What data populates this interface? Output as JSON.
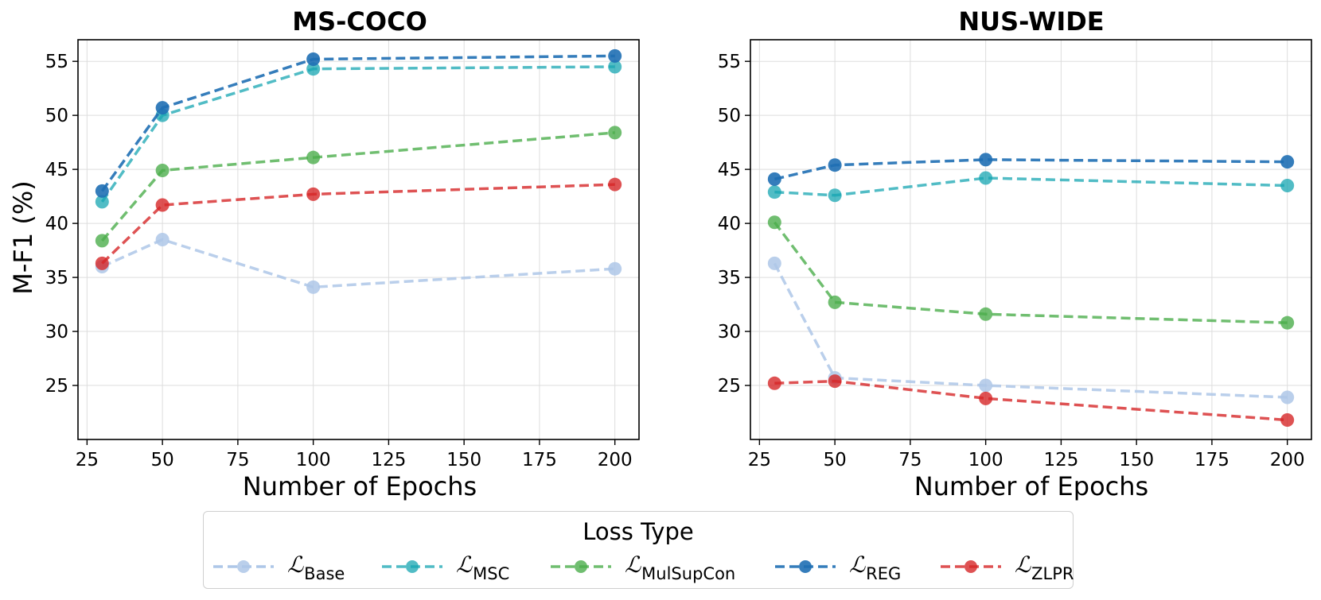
{
  "chart_data": [
    {
      "type": "line",
      "title": "MS-COCO",
      "xlabel": "Number of Epochs",
      "ylabel": "M-F1 (%)",
      "x": [
        30,
        50,
        100,
        200
      ],
      "xlim": [
        22,
        208
      ],
      "ylim": [
        20,
        57
      ],
      "xticks": [
        25,
        50,
        75,
        100,
        125,
        150,
        175,
        200
      ],
      "yticks": [
        25,
        30,
        35,
        40,
        45,
        50,
        55
      ],
      "grid": true,
      "series": [
        {
          "key": "base",
          "values": [
            36.0,
            38.5,
            34.1,
            35.8
          ]
        },
        {
          "key": "msc",
          "values": [
            42.0,
            50.0,
            54.3,
            54.5
          ]
        },
        {
          "key": "mulsupcon",
          "values": [
            38.4,
            44.9,
            46.1,
            48.4
          ]
        },
        {
          "key": "reg",
          "values": [
            43.0,
            50.7,
            55.2,
            55.5
          ]
        },
        {
          "key": "zlpr",
          "values": [
            36.3,
            41.7,
            42.7,
            43.6
          ]
        }
      ]
    },
    {
      "type": "line",
      "title": "NUS-WIDE",
      "xlabel": "Number of Epochs",
      "ylabel": "",
      "x": [
        30,
        50,
        100,
        200
      ],
      "xlim": [
        22,
        208
      ],
      "ylim": [
        20,
        57
      ],
      "xticks": [
        25,
        50,
        75,
        100,
        125,
        150,
        175,
        200
      ],
      "yticks": [
        25,
        30,
        35,
        40,
        45,
        50,
        55
      ],
      "grid": true,
      "series": [
        {
          "key": "base",
          "values": [
            36.3,
            25.7,
            25.0,
            23.9
          ]
        },
        {
          "key": "msc",
          "values": [
            42.9,
            42.6,
            44.2,
            43.5
          ]
        },
        {
          "key": "mulsupcon",
          "values": [
            40.1,
            32.7,
            31.6,
            30.8
          ]
        },
        {
          "key": "reg",
          "values": [
            44.1,
            45.4,
            45.9,
            45.7
          ]
        },
        {
          "key": "zlpr",
          "values": [
            25.2,
            25.4,
            23.8,
            21.8
          ]
        }
      ]
    }
  ],
  "legend": {
    "title": "Loss Type",
    "placement": "bottom-center",
    "entries": [
      {
        "key": "base",
        "symbol": "ℒ",
        "sub": "Base",
        "color": "#aec7e8"
      },
      {
        "key": "msc",
        "symbol": "ℒ",
        "sub": "MSC",
        "color": "#17a6b2"
      },
      {
        "key": "mulsupcon",
        "symbol": "ℒ",
        "sub": "MulSupCon",
        "color": "#4cae4c"
      },
      {
        "key": "reg",
        "symbol": "ℒ",
        "sub": "REG",
        "color": "#1f6fb4"
      },
      {
        "key": "zlpr",
        "symbol": "ℒ",
        "sub": "ZLPR",
        "color": "#d62728"
      }
    ]
  }
}
